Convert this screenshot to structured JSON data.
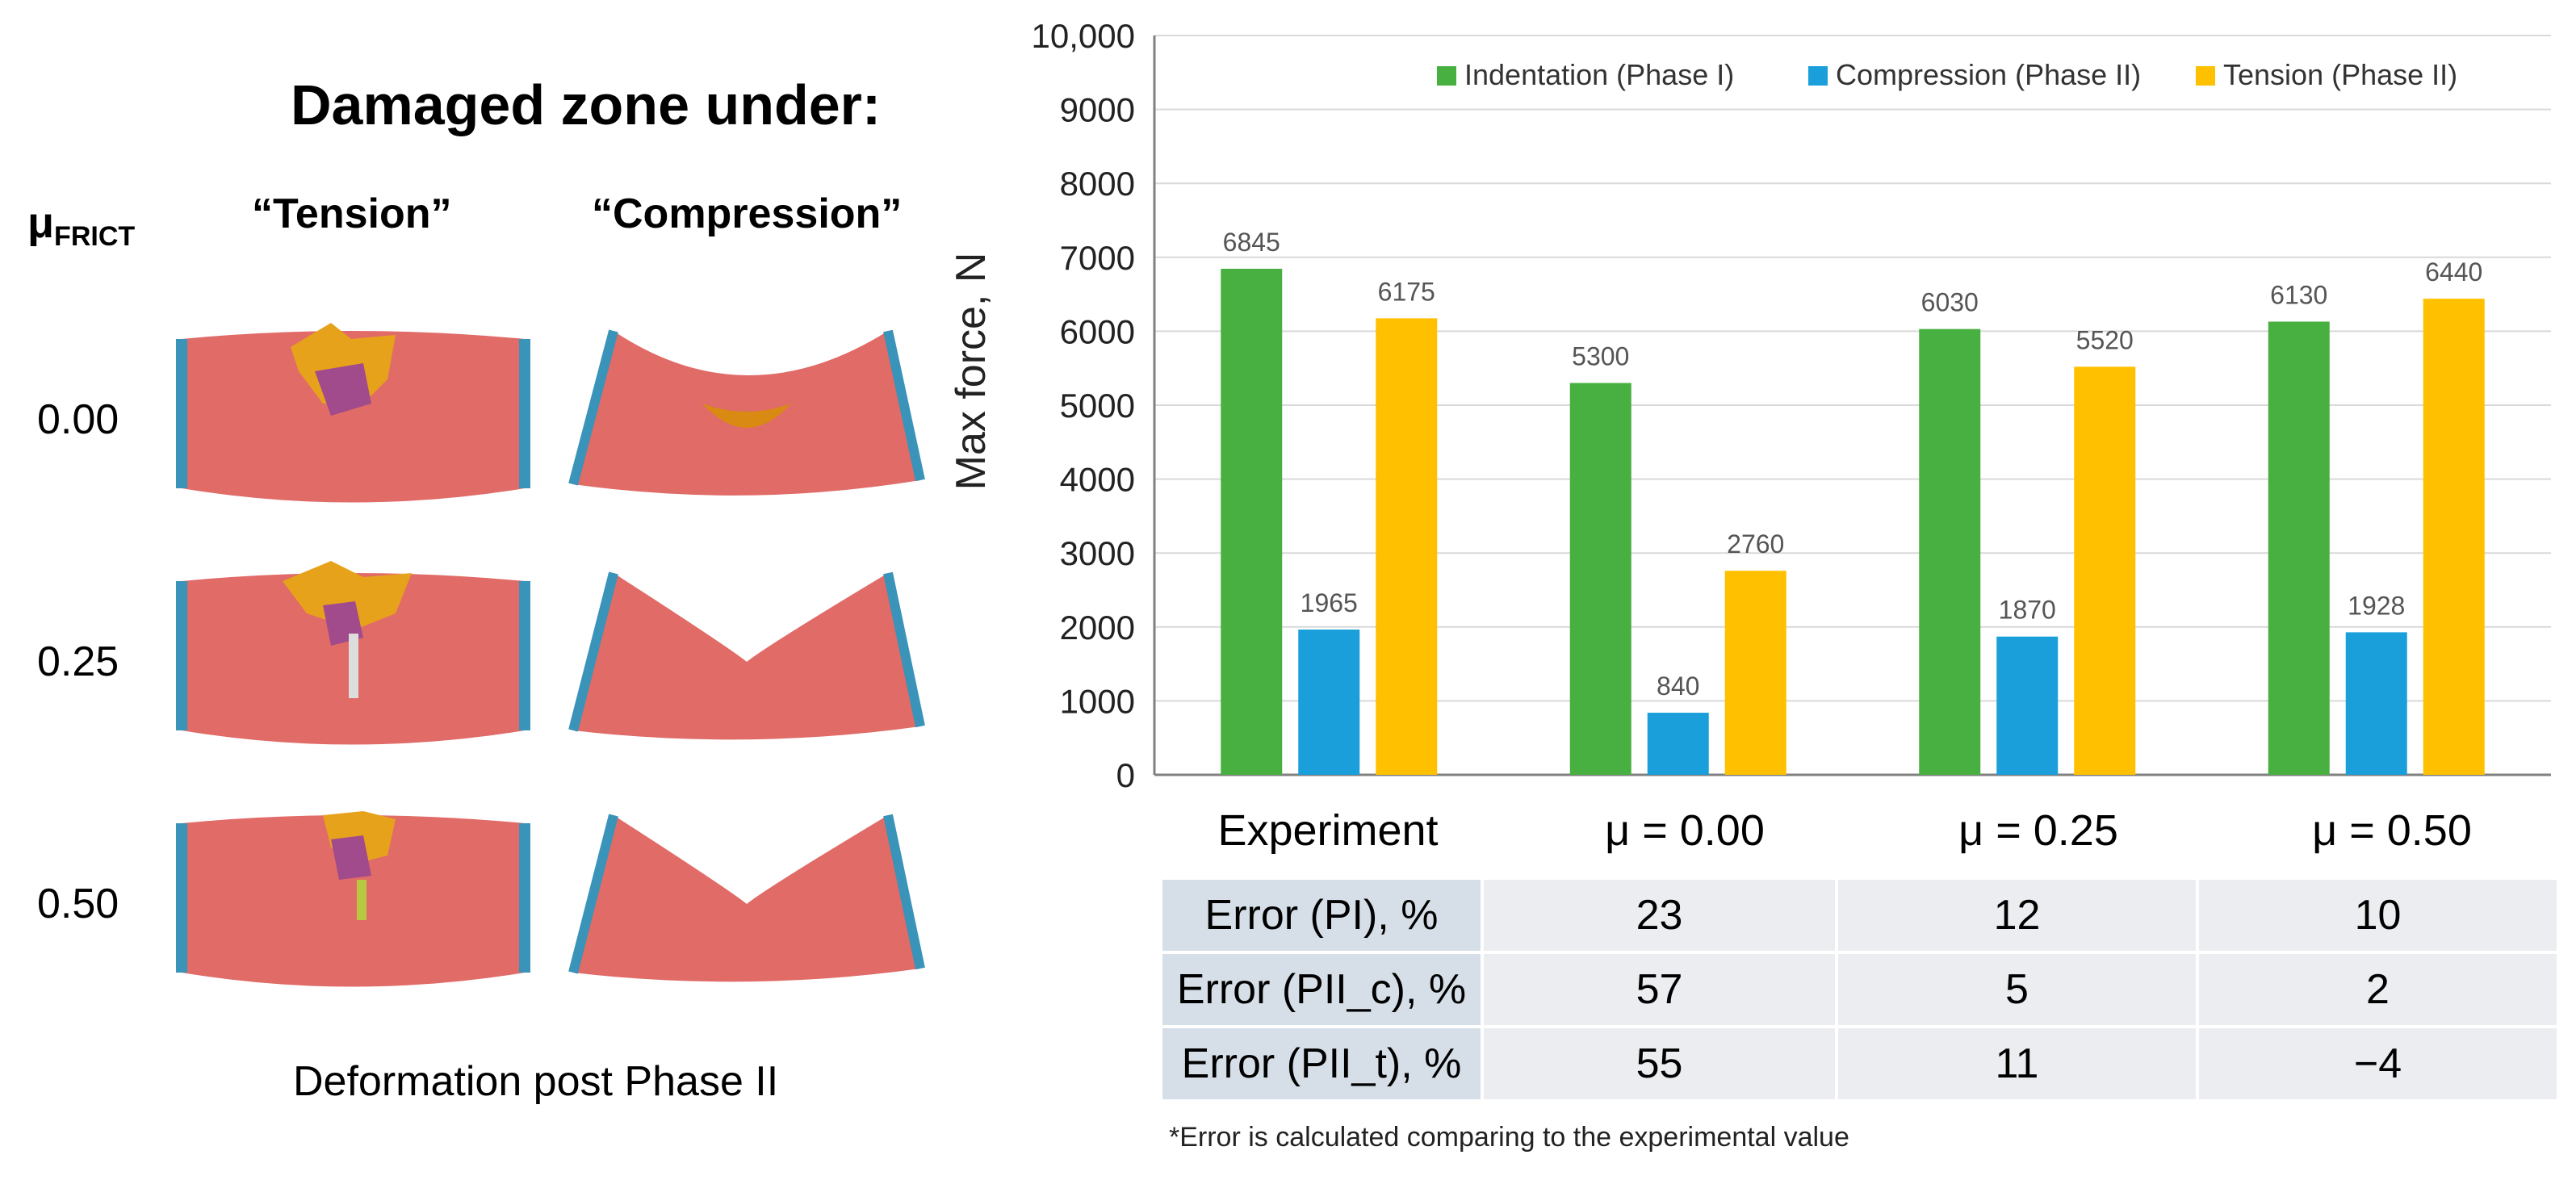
{
  "left_panel": {
    "title": "Damaged zone under:",
    "mu_header_main": "μ",
    "mu_header_sub": "FRICT",
    "col_tension": "“Tension”",
    "col_compression": "“Compression”",
    "mu_values": [
      "0.00",
      "0.25",
      "0.50"
    ],
    "caption": "Deformation post Phase II",
    "colors": {
      "body": "#e06b67",
      "edge": "#3a93b8",
      "damage": "#e7a21c",
      "inner": "#a14a8c"
    }
  },
  "chart_data": {
    "type": "bar",
    "categories": [
      "Experiment",
      "μ = 0.00",
      "μ = 0.25",
      "μ = 0.50"
    ],
    "series": [
      {
        "name": "Indentation (Phase I)",
        "color": "#48b040",
        "values": [
          6845,
          5300,
          6030,
          6130
        ]
      },
      {
        "name": "Compression (Phase II)",
        "color": "#1b9fda",
        "values": [
          1965,
          840,
          1870,
          1928
        ]
      },
      {
        "name": "Tension (Phase II)",
        "color": "#ffc000",
        "values": [
          6175,
          2760,
          5520,
          6440
        ]
      }
    ],
    "ylabel": "Max force, N",
    "xlabel": "",
    "ylim": [
      0,
      10000
    ],
    "yticks": [
      "0",
      "1000",
      "2000",
      "3000",
      "4000",
      "5000",
      "6000",
      "7000",
      "8000",
      "9000",
      "10,000"
    ],
    "grid": true,
    "legend": "top"
  },
  "table": {
    "rows": [
      {
        "label": "Error (PI), %",
        "values": [
          "23",
          "12",
          "10"
        ]
      },
      {
        "label": "Error (PII_c), %",
        "values": [
          "57",
          "5",
          "2"
        ]
      },
      {
        "label": "Error (PII_t), %",
        "values": [
          "55",
          "11",
          "−4"
        ]
      }
    ]
  },
  "footnote": "*Error is calculated comparing to the experimental value"
}
